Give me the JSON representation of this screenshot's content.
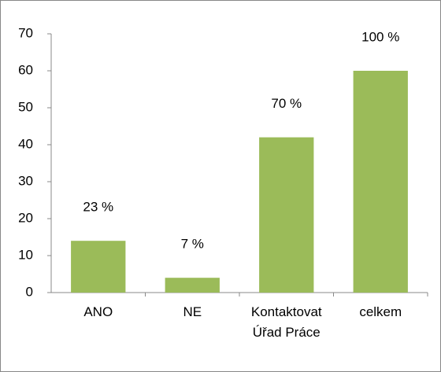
{
  "chart_data": {
    "type": "bar",
    "categories": [
      "ANO",
      "NE",
      "Kontaktovat Úřad Práce",
      "celkem"
    ],
    "values": [
      14,
      4,
      42,
      60
    ],
    "annotations": [
      "23 %",
      "7 %",
      "70 %",
      "100 %"
    ],
    "color": "#9bbb59",
    "ylim": [
      0,
      70
    ],
    "yticks": [
      0,
      10,
      20,
      30,
      40,
      50,
      60,
      70
    ],
    "grid": false
  }
}
